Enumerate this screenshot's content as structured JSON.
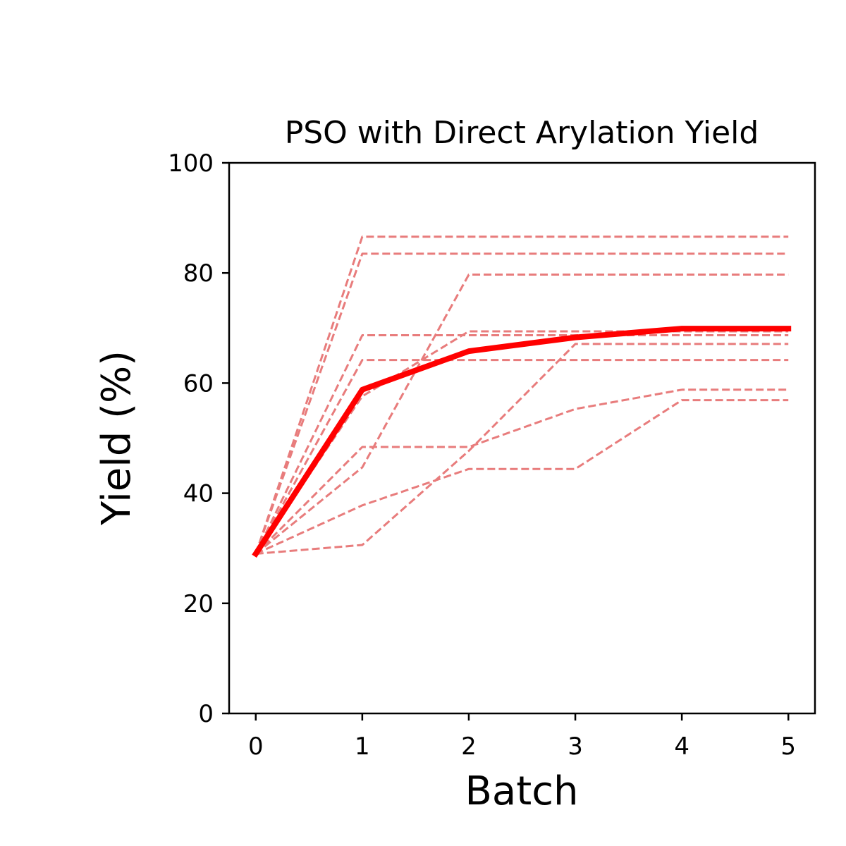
{
  "chart_data": {
    "type": "line",
    "title": "PSO with Direct Arylation Yield",
    "xlabel": "Batch",
    "ylabel": "Yield (%)",
    "xlim": [
      -0.25,
      5.25
    ],
    "ylim": [
      0,
      100
    ],
    "x": [
      0,
      1,
      2,
      3,
      4,
      5
    ],
    "x_ticks": [
      "0",
      "1",
      "2",
      "3",
      "4",
      "5"
    ],
    "y_ticks": [
      "0",
      "20",
      "40",
      "60",
      "80",
      "100"
    ],
    "grid": false,
    "legend": "none",
    "colors": {
      "mean": "#ff0000",
      "runs": "#e87c7c"
    },
    "series": [
      {
        "role": "mean",
        "values": [
          29.0,
          58.8,
          65.8,
          68.3,
          69.9,
          69.9
        ]
      },
      {
        "role": "run",
        "values": [
          29.0,
          86.6,
          86.6,
          86.6,
          86.6,
          86.6
        ]
      },
      {
        "role": "run",
        "values": [
          29.0,
          83.5,
          83.5,
          83.5,
          83.5,
          83.5
        ]
      },
      {
        "role": "run",
        "values": [
          29.0,
          44.7,
          79.7,
          79.7,
          79.7,
          79.7
        ]
      },
      {
        "role": "run",
        "values": [
          29.0,
          68.7,
          68.7,
          68.7,
          68.7,
          68.7
        ]
      },
      {
        "role": "run",
        "values": [
          29.0,
          57.6,
          69.4,
          69.4,
          69.4,
          69.4
        ]
      },
      {
        "role": "run",
        "values": [
          29.0,
          64.2,
          64.2,
          64.2,
          64.2,
          64.2
        ]
      },
      {
        "role": "run",
        "values": [
          29.0,
          30.6,
          47.7,
          67.1,
          67.1,
          67.1
        ]
      },
      {
        "role": "run",
        "values": [
          29.0,
          48.4,
          48.4,
          55.3,
          58.8,
          58.8
        ]
      },
      {
        "role": "run",
        "values": [
          29.0,
          37.8,
          44.4,
          44.4,
          56.9,
          56.9
        ]
      }
    ]
  }
}
